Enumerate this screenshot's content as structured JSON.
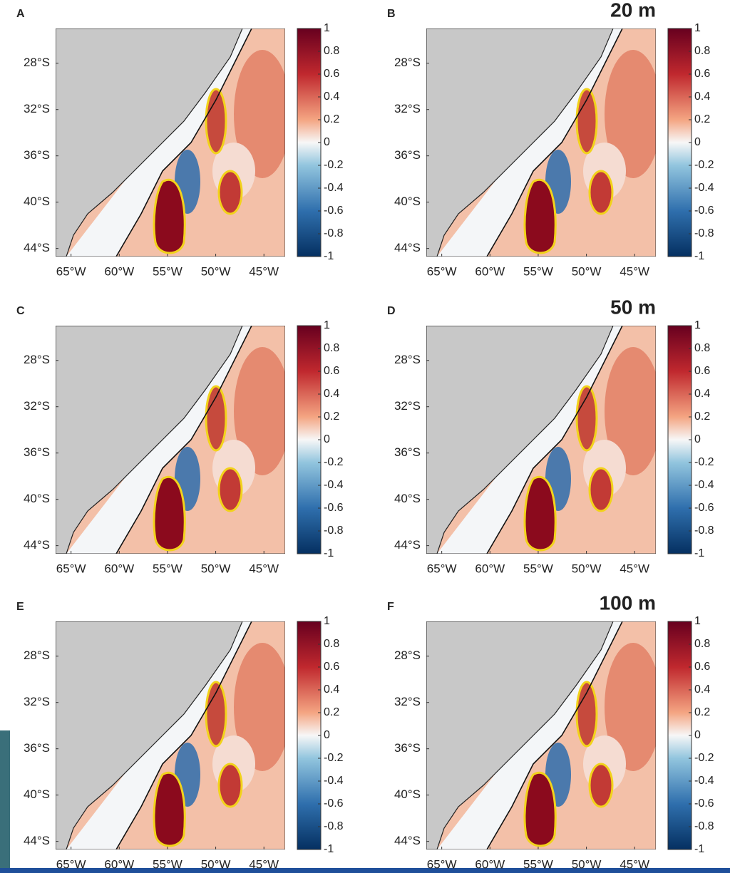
{
  "panels": [
    {
      "label": "A"
    },
    {
      "label": "B",
      "depth": "20 m"
    },
    {
      "label": "C"
    },
    {
      "label": "D",
      "depth": "50 m"
    },
    {
      "label": "E"
    },
    {
      "label": "F",
      "depth": "100 m"
    }
  ],
  "ylim": [
    -44.7,
    -25
  ],
  "yticks": [
    {
      "value": -28,
      "label": "28°S"
    },
    {
      "value": -32,
      "label": "32°S"
    },
    {
      "value": -36,
      "label": "36°S"
    },
    {
      "value": -40,
      "label": "40°S"
    },
    {
      "value": -44,
      "label": "44°S"
    }
  ],
  "xlim": [
    -66.6,
    -42.8
  ],
  "xticks": [
    {
      "value": -65,
      "label": "65°W"
    },
    {
      "value": -60,
      "label": "60°W"
    },
    {
      "value": -55,
      "label": "55°W"
    },
    {
      "value": -50,
      "label": "50°W"
    },
    {
      "value": -45,
      "label": "45°W"
    }
  ],
  "colorbar": {
    "lim": [
      -1,
      1
    ],
    "ticks": [
      1,
      0.8,
      0.6,
      0.4,
      0.2,
      0,
      -0.2,
      -0.4,
      -0.6,
      -0.8,
      -1
    ]
  }
}
